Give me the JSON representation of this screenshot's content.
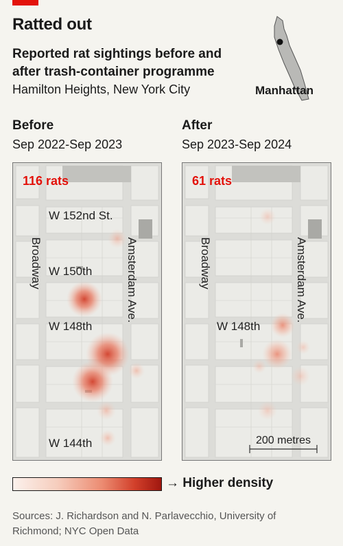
{
  "title": "Ratted out",
  "subtitle": "Reported rat sightings before and after trash-container programme",
  "place": "Hamilton Heights, New York City",
  "inset_label": "Manhattan",
  "panels": {
    "before": {
      "heading": "Before",
      "period": "Sep 2022-Sep 2023",
      "count_label": "116 rats",
      "streets": [
        "W 152nd St.",
        "W 150th",
        "W 148th",
        "W 144th"
      ],
      "avenues": [
        "Broadway",
        "Amsterdam Ave."
      ]
    },
    "after": {
      "heading": "After",
      "period": "Sep 2023-Sep 2024",
      "count_label": "61 rats",
      "streets": [
        "W 148th"
      ],
      "avenues": [
        "Broadway",
        "Amsterdam Ave."
      ],
      "scale_label": "200 metres"
    }
  },
  "legend": {
    "label": "Higher density"
  },
  "sources": "Sources: J. Richardson and N. Parlavecchio, University of Richmond; NYC Open Data",
  "colors": {
    "accent": "#e3120b",
    "heat_max": "#d2402b",
    "map_bg": "#dcdcd8",
    "block": "#ebebe7"
  },
  "chart_data": {
    "type": "heatmap",
    "series": [
      {
        "name": "Before",
        "period": "Sep 2022-Sep 2023",
        "total": 116
      },
      {
        "name": "After",
        "period": "Sep 2023-Sep 2024",
        "total": 61
      }
    ]
  }
}
